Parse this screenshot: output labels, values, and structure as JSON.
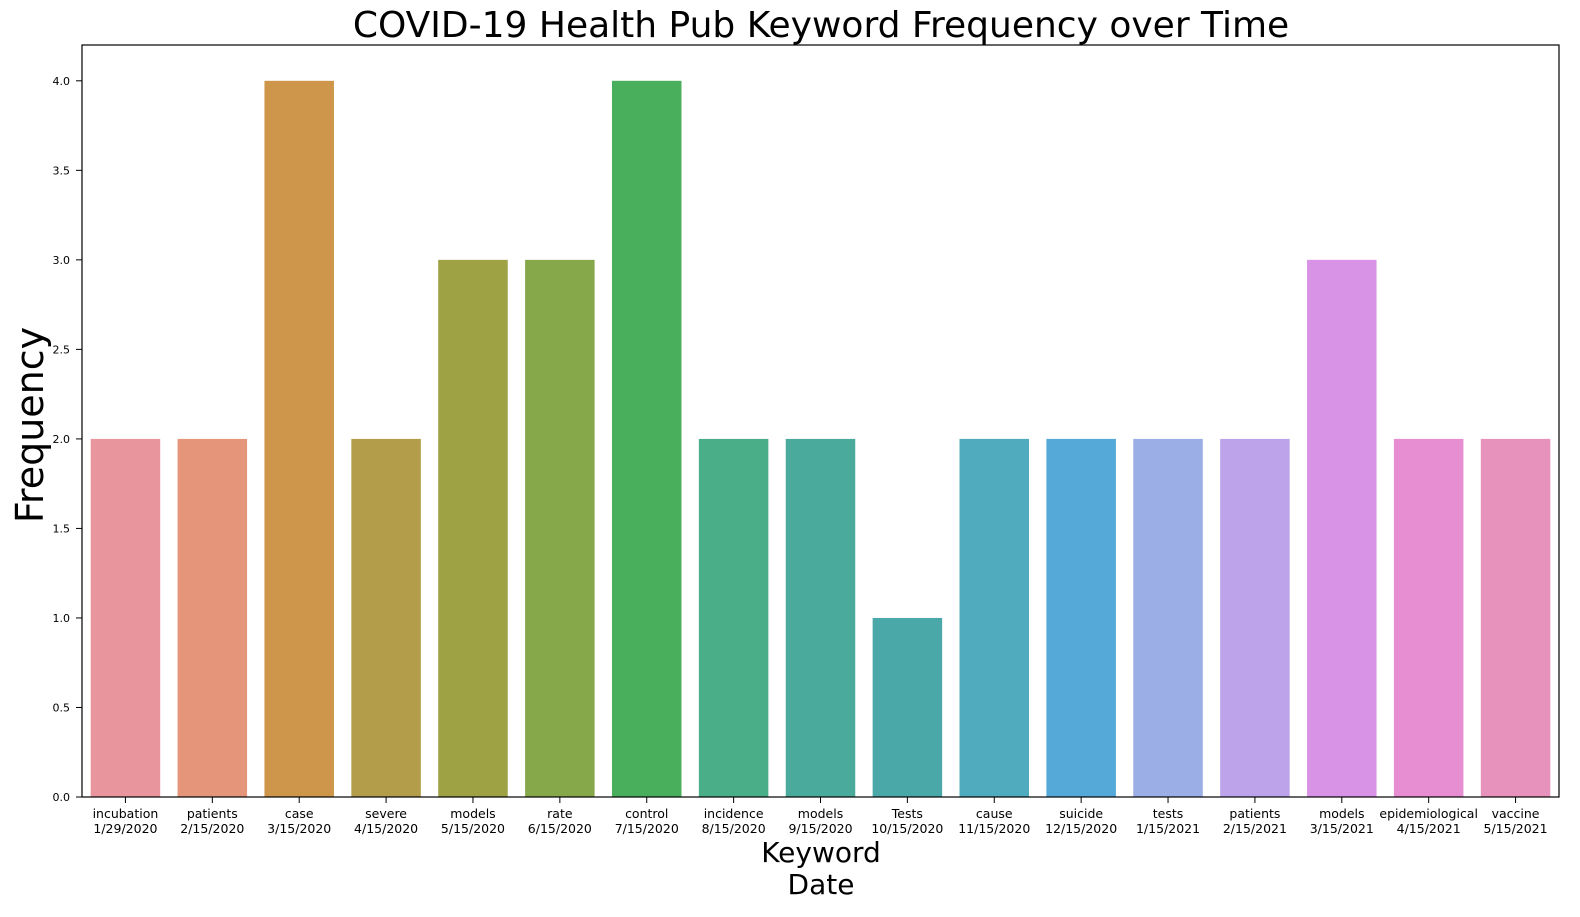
{
  "chart_data": {
    "type": "bar",
    "title": "COVID-19 Health Pub Keyword Frequency over Time",
    "xlabel": "Keyword",
    "xlabel_line2": "Date",
    "ylabel": "Frequency",
    "ylim": [
      0,
      4.2
    ],
    "yticks": [
      "0.0",
      "0.5",
      "1.0",
      "1.5",
      "2.0",
      "2.5",
      "3.0",
      "3.5",
      "4.0"
    ],
    "grid": false,
    "categories": [
      {
        "keyword": "incubation",
        "date": "1/29/2020"
      },
      {
        "keyword": "patients",
        "date": "2/15/2020"
      },
      {
        "keyword": "case",
        "date": "3/15/2020"
      },
      {
        "keyword": "severe",
        "date": "4/15/2020"
      },
      {
        "keyword": "models",
        "date": "5/15/2020"
      },
      {
        "keyword": "rate",
        "date": "6/15/2020"
      },
      {
        "keyword": "control",
        "date": "7/15/2020"
      },
      {
        "keyword": "incidence",
        "date": "8/15/2020"
      },
      {
        "keyword": "models",
        "date": "9/15/2020"
      },
      {
        "keyword": "Tests",
        "date": "10/15/2020"
      },
      {
        "keyword": "cause",
        "date": "11/15/2020"
      },
      {
        "keyword": "suicide",
        "date": "12/15/2020"
      },
      {
        "keyword": "tests",
        "date": "1/15/2021"
      },
      {
        "keyword": "patients",
        "date": "2/15/2021"
      },
      {
        "keyword": "models",
        "date": "3/15/2021"
      },
      {
        "keyword": "epidemiological",
        "date": "4/15/2021"
      },
      {
        "keyword": "vaccine",
        "date": "5/15/2021"
      }
    ],
    "values": [
      2,
      2,
      4,
      2,
      3,
      3,
      4,
      2,
      2,
      1,
      2,
      2,
      2,
      2,
      3,
      2,
      2
    ],
    "colors": [
      "#e8959e",
      "#e4957a",
      "#cd964b",
      "#b39c4a",
      "#9ea144",
      "#86a84a",
      "#4aaf5c",
      "#4aae88",
      "#4aab9c",
      "#4ba8a8",
      "#4fabbd",
      "#55a9d8",
      "#9baee6",
      "#bda3ea",
      "#d893e6",
      "#e68ed1",
      "#e792bc"
    ]
  }
}
